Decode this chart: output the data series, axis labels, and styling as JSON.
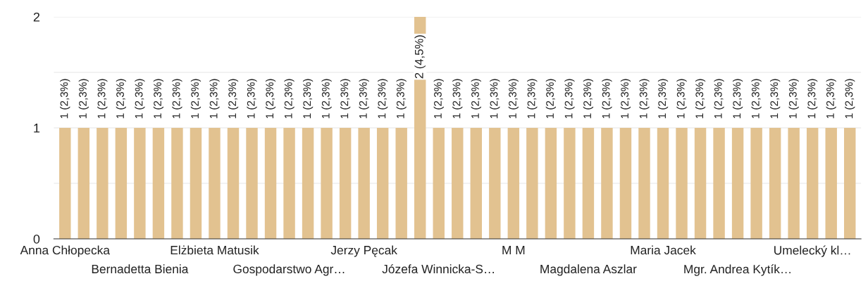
{
  "chart_data": {
    "type": "bar",
    "categories": [
      "Anna Chłopecka",
      null,
      null,
      null,
      "Bernadetta Bienia",
      null,
      null,
      null,
      "Elżbieta Matusik",
      null,
      null,
      null,
      "Gospodarstwo Agr…",
      null,
      null,
      null,
      "Jerzy Pęcak",
      null,
      null,
      null,
      "Józefa Winnicka-S…",
      null,
      null,
      null,
      "M M",
      null,
      null,
      null,
      "Magdalena Aszlar",
      null,
      null,
      null,
      "Maria Jacek",
      null,
      null,
      null,
      "Mgr. Andrea Kytík…",
      null,
      null,
      null,
      "Umelecký kl…",
      null,
      null
    ],
    "values": [
      1,
      1,
      1,
      1,
      1,
      1,
      1,
      1,
      1,
      1,
      1,
      1,
      1,
      1,
      1,
      1,
      1,
      1,
      1,
      2,
      1,
      1,
      1,
      1,
      1,
      1,
      1,
      1,
      1,
      1,
      1,
      1,
      1,
      1,
      1,
      1,
      1,
      1,
      1,
      1,
      1,
      1,
      1
    ],
    "value_labels": [
      "1 (2,3%)",
      "1 (2,3%)",
      "1 (2,3%)",
      "1 (2,3%)",
      "1 (2,3%)",
      "1 (2,3%)",
      "1 (2,3%)",
      "1 (2,3%)",
      "1 (2,3%)",
      "1 (2,3%)",
      "1 (2,3%)",
      "1 (2,3%)",
      "1 (2,3%)",
      "1 (2,3%)",
      "1 (2,3%)",
      "1 (2,3%)",
      "1 (2,3%)",
      "1 (2,3%)",
      "1 (2,3%)",
      "2 (4,5%)",
      "1 (2,3%)",
      "1 (2,3%)",
      "1 (2,3%)",
      "1 (2,3%)",
      "1 (2,3%)",
      "1 (2,3%)",
      "1 (2,3%)",
      "1 (2,3%)",
      "1 (2,3%)",
      "1 (2,3%)",
      "1 (2,3%)",
      "1 (2,3%)",
      "1 (2,3%)",
      "1 (2,3%)",
      "1 (2,3%)",
      "1 (2,3%)",
      "1 (2,3%)",
      "1 (2,3%)",
      "1 (2,3%)",
      "1 (2,3%)",
      "1 (2,3%)",
      "1 (2,3%)",
      "1 (2,3%)"
    ],
    "color": "#e2c290",
    "ylim": [
      0,
      2
    ],
    "yticks": [
      0,
      {
        "value": 0.5,
        "label": null
      },
      1,
      {
        "value": 1.5,
        "label": null
      },
      2
    ],
    "grid": "y"
  }
}
